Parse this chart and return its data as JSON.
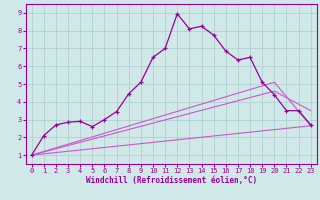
{
  "title": "",
  "xlabel": "Windchill (Refroidissement éolien,°C)",
  "xlim": [
    -0.5,
    23.5
  ],
  "ylim": [
    0.5,
    9.5
  ],
  "xticks": [
    0,
    1,
    2,
    3,
    4,
    5,
    6,
    7,
    8,
    9,
    10,
    11,
    12,
    13,
    14,
    15,
    16,
    17,
    18,
    19,
    20,
    21,
    22,
    23
  ],
  "yticks": [
    1,
    2,
    3,
    4,
    5,
    6,
    7,
    8,
    9
  ],
  "bg_color": "#d0e8e8",
  "grid_color": "#aacccc",
  "line_dark": "#990099",
  "line_light": "#cc55cc",
  "curve_main": {
    "x": [
      0,
      1,
      2,
      3,
      4,
      5,
      6,
      7,
      8,
      9,
      10,
      11,
      12,
      13,
      14,
      15,
      16,
      17,
      18,
      19,
      20,
      21,
      22,
      23
    ],
    "y": [
      1.0,
      2.1,
      2.7,
      2.85,
      2.9,
      2.6,
      3.0,
      3.45,
      4.45,
      5.1,
      6.5,
      7.0,
      8.95,
      8.1,
      8.25,
      7.75,
      6.85,
      6.35,
      6.5,
      5.1,
      4.4,
      3.5,
      3.5,
      2.7
    ]
  },
  "curve_flat1": {
    "x": [
      0,
      23
    ],
    "y": [
      1.0,
      2.65
    ]
  },
  "curve_flat2": {
    "x": [
      0,
      20,
      23
    ],
    "y": [
      1.0,
      4.6,
      3.5
    ]
  },
  "curve_flat3": {
    "x": [
      0,
      20,
      23
    ],
    "y": [
      1.0,
      5.1,
      2.65
    ]
  }
}
